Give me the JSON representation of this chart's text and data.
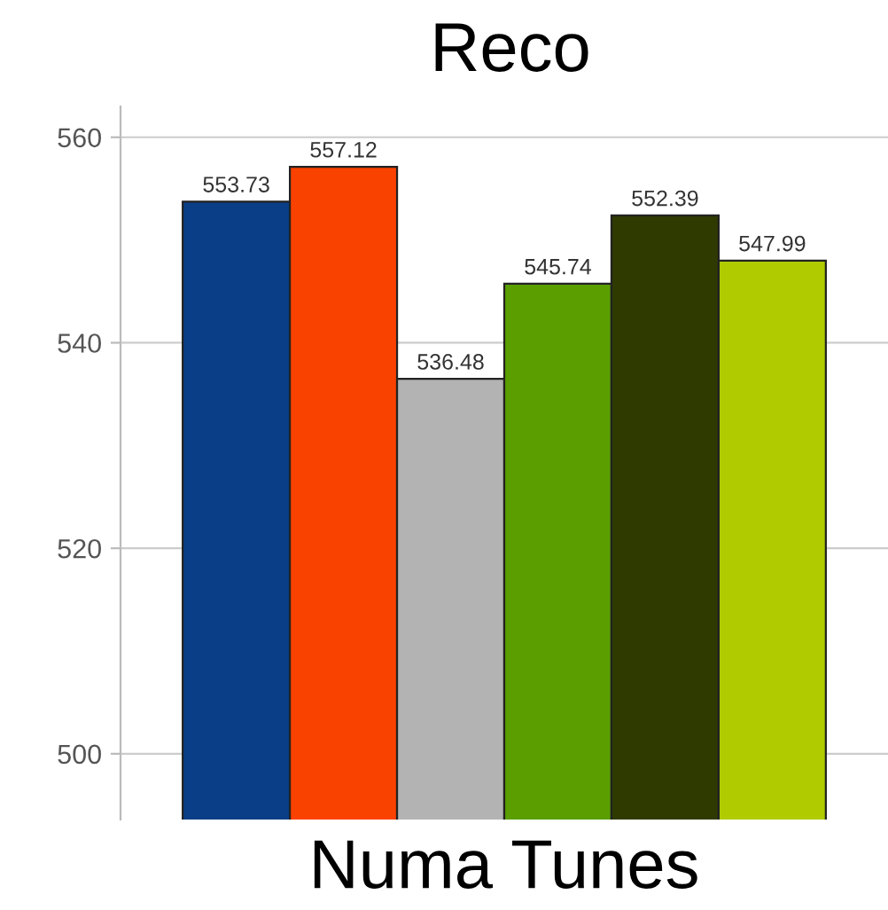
{
  "chart_data": {
    "type": "bar",
    "title": "Reco",
    "xlabel": "Numa Tunes",
    "categories": [
      null,
      null,
      null,
      null,
      null,
      null
    ],
    "values": [
      553.73,
      557.12,
      536.48,
      545.74,
      552.39,
      547.99
    ],
    "colors": [
      "#0a3f87",
      "#fa4200",
      "#b3b3b3",
      "#5a9e00",
      "#2f3a00",
      "#b0cc00"
    ],
    "ylim": [
      493.6,
      563
    ],
    "yticks": [
      500,
      520,
      540,
      560
    ],
    "grid": "y",
    "data_labels": true
  }
}
